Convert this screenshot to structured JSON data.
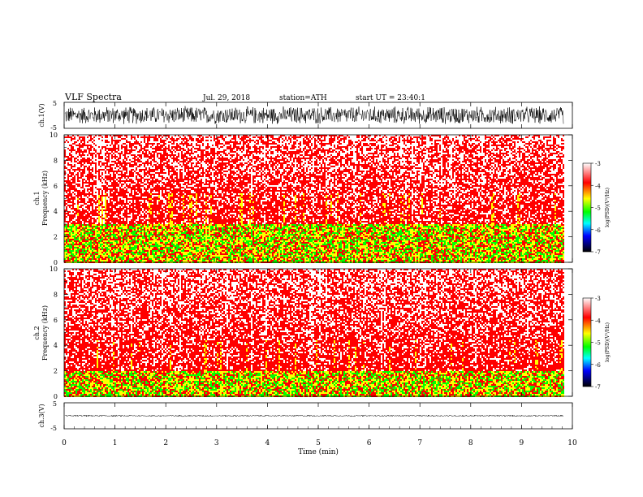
{
  "header": {
    "title": "VLF  Spectra",
    "date": "Jul.  29,  2018",
    "station": "station=ATH",
    "start": "start  UT  =    23:40:1"
  },
  "colorbar": {
    "label": "log(PSD)(V²/Hz)",
    "ticks": [
      "-3",
      "-4",
      "-5",
      "-6",
      "-7"
    ]
  },
  "colors": {
    "psd_high": "#ff0000",
    "psd_background": "#ffffff",
    "psd_mid": "#ffff00",
    "psd_low": "#00ff00"
  },
  "chart_data": [
    {
      "type": "line",
      "name": "ch1-waveform",
      "ylabel": "ch.1(V)",
      "ylim": [
        -5,
        5
      ],
      "yticks": [
        "5",
        "-5"
      ],
      "xlim": [
        0,
        10
      ],
      "amplitude_approx": 3.5
    },
    {
      "type": "heatmap",
      "name": "ch1-spectrogram",
      "ylabel_line1": "ch.1",
      "ylabel_line2": "Frequency  (kHz)",
      "ylim": [
        0,
        10
      ],
      "yticks": [
        "0",
        "2",
        "4",
        "6",
        "8",
        "10"
      ],
      "xlim": [
        0,
        9.83
      ],
      "value_range": [
        -7,
        -3
      ],
      "dominant_value_approx": -4,
      "enhanced_band_khz": [
        0,
        3
      ]
    },
    {
      "type": "heatmap",
      "name": "ch2-spectrogram",
      "ylabel_line1": "ch.2",
      "ylabel_line2": "Frequency  (kHz)",
      "ylim": [
        0,
        10
      ],
      "yticks": [
        "0",
        "2",
        "4",
        "6",
        "8",
        "10"
      ],
      "xlim": [
        0,
        9.83
      ],
      "value_range": [
        -7,
        -3
      ],
      "dominant_value_approx": -4,
      "enhanced_band_khz": [
        0,
        2
      ]
    },
    {
      "type": "line",
      "name": "ch3-waveform",
      "ylabel": "ch.3(V)",
      "ylim": [
        -5,
        5
      ],
      "yticks": [
        "5",
        "-5"
      ],
      "xlim": [
        0,
        10
      ],
      "amplitude_approx": 0.3
    }
  ],
  "xaxis": {
    "label": "Time  (min)",
    "ticks": [
      "0",
      "1",
      "2",
      "3",
      "4",
      "5",
      "6",
      "7",
      "8",
      "9",
      "10"
    ]
  }
}
